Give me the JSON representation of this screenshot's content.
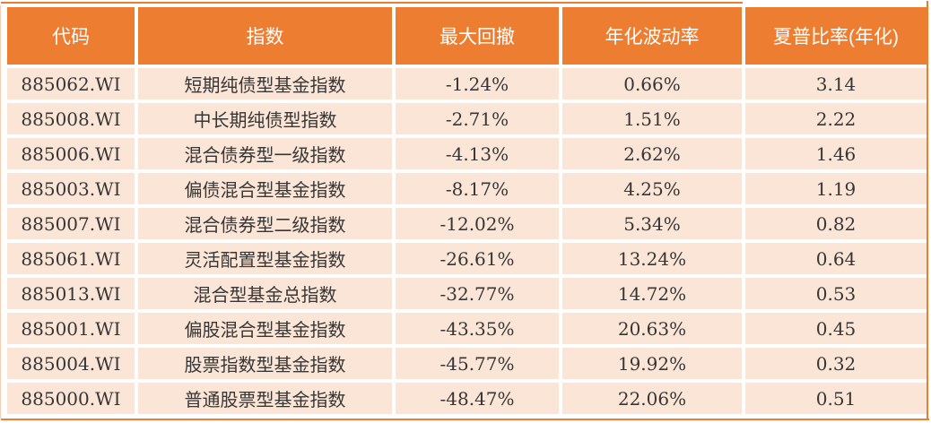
{
  "colors": {
    "header_bg": "#ED7D31",
    "row_bg": "#FBE5D6",
    "header_text": "#FFFFFF",
    "body_text": "#363636",
    "border_accent": "#ED7D31"
  },
  "chart_data": {
    "type": "table",
    "columns": [
      "代码",
      "指数",
      "最大回撤",
      "年化波动率",
      "夏普比率(年化)"
    ],
    "column_keys": [
      "code",
      "index_name",
      "max_drawdown",
      "annualized_volatility",
      "sharpe_ratio_annualized"
    ],
    "rows": [
      [
        "885062.WI",
        "短期纯债型基金指数",
        "-1.24%",
        "0.66%",
        "3.14"
      ],
      [
        "885008.WI",
        "中长期纯债型指数",
        "-2.71%",
        "1.51%",
        "2.22"
      ],
      [
        "885006.WI",
        "混合债券型一级指数",
        "-4.13%",
        "2.62%",
        "1.46"
      ],
      [
        "885003.WI",
        "偏债混合型基金指数",
        "-8.17%",
        "4.25%",
        "1.19"
      ],
      [
        "885007.WI",
        "混合债券型二级指数",
        "-12.02%",
        "5.34%",
        "0.82"
      ],
      [
        "885061.WI",
        "灵活配置型基金指数",
        "-26.61%",
        "13.24%",
        "0.64"
      ],
      [
        "885013.WI",
        "混合型基金总指数",
        "-32.77%",
        "14.72%",
        "0.53"
      ],
      [
        "885001.WI",
        "偏股混合型基金指数",
        "-43.35%",
        "20.63%",
        "0.45"
      ],
      [
        "885004.WI",
        "股票指数型基金指数",
        "-45.77%",
        "19.92%",
        "0.32"
      ],
      [
        "885000.WI",
        "普通股票型基金指数",
        "-48.47%",
        "22.06%",
        "0.51"
      ]
    ]
  }
}
